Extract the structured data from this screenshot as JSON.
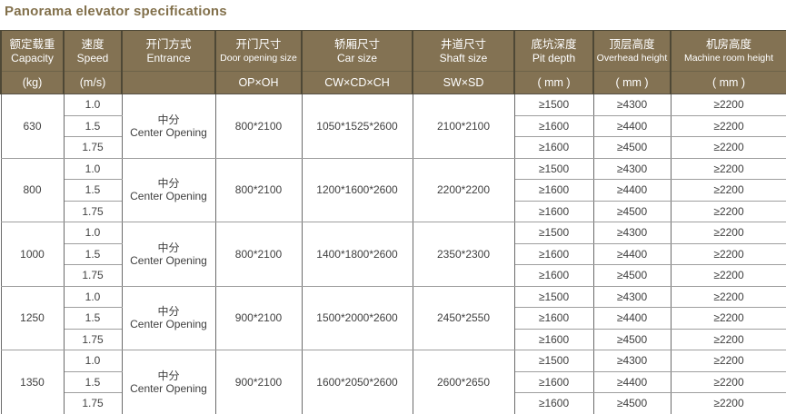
{
  "title": "Panorama elevator specifications",
  "colors": {
    "header_bg": "#837253",
    "header_text": "#ffffff",
    "header_divider": "#4e4836",
    "title_color": "#82704b",
    "body_text": "#3f3f3f",
    "grid_vertical": "#6b6b6b",
    "grid_horizontal": "#9e9e9e"
  },
  "header": {
    "columns": [
      {
        "zh": "额定载重",
        "en": "Capacity",
        "unit": "(kg)"
      },
      {
        "zh": "速度",
        "en": "Speed",
        "unit": "(m/s)"
      },
      {
        "zh": "开门方式",
        "en": "Entrance",
        "unit": ""
      },
      {
        "zh": "开门尺寸",
        "en": "Door opening size",
        "unit": "OP×OH"
      },
      {
        "zh": "轿厢尺寸",
        "en": "Car size",
        "unit": "CW×CD×CH"
      },
      {
        "zh": "井道尺寸",
        "en": "Shaft size",
        "unit": "SW×SD"
      },
      {
        "zh": "底坑深度",
        "en": "Pit depth",
        "unit": "( mm )"
      },
      {
        "zh": "顶层高度",
        "en": "Overhead height",
        "unit": "( mm )"
      },
      {
        "zh": "机房高度",
        "en": "Machine room height",
        "unit": "( mm )"
      }
    ]
  },
  "groups": [
    {
      "capacity": "630",
      "entrance_zh": "中分",
      "entrance_en": "Center Opening",
      "door": "800*2100",
      "car": "1050*1525*2600",
      "shaft": "2100*2100",
      "rows": [
        {
          "speed": "1.0",
          "pit": "≥1500",
          "overhead": "≥4300",
          "machine": "≥2200"
        },
        {
          "speed": "1.5",
          "pit": "≥1600",
          "overhead": "≥4400",
          "machine": "≥2200"
        },
        {
          "speed": "1.75",
          "pit": "≥1600",
          "overhead": "≥4500",
          "machine": "≥2200"
        }
      ]
    },
    {
      "capacity": "800",
      "entrance_zh": "中分",
      "entrance_en": "Center Opening",
      "door": "800*2100",
      "car": "1200*1600*2600",
      "shaft": "2200*2200",
      "rows": [
        {
          "speed": "1.0",
          "pit": "≥1500",
          "overhead": "≥4300",
          "machine": "≥2200"
        },
        {
          "speed": "1.5",
          "pit": "≥1600",
          "overhead": "≥4400",
          "machine": "≥2200"
        },
        {
          "speed": "1.75",
          "pit": "≥1600",
          "overhead": "≥4500",
          "machine": "≥2200"
        }
      ]
    },
    {
      "capacity": "1000",
      "entrance_zh": "中分",
      "entrance_en": "Center Opening",
      "door": "800*2100",
      "car": "1400*1800*2600",
      "shaft": "2350*2300",
      "rows": [
        {
          "speed": "1.0",
          "pit": "≥1500",
          "overhead": "≥4300",
          "machine": "≥2200"
        },
        {
          "speed": "1.5",
          "pit": "≥1600",
          "overhead": "≥4400",
          "machine": "≥2200"
        },
        {
          "speed": "1.75",
          "pit": "≥1600",
          "overhead": "≥4500",
          "machine": "≥2200"
        }
      ]
    },
    {
      "capacity": "1250",
      "entrance_zh": "中分",
      "entrance_en": "Center Opening",
      "door": "900*2100",
      "car": "1500*2000*2600",
      "shaft": "2450*2550",
      "rows": [
        {
          "speed": "1.0",
          "pit": "≥1500",
          "overhead": "≥4300",
          "machine": "≥2200"
        },
        {
          "speed": "1.5",
          "pit": "≥1600",
          "overhead": "≥4400",
          "machine": "≥2200"
        },
        {
          "speed": "1.75",
          "pit": "≥1600",
          "overhead": "≥4500",
          "machine": "≥2200"
        }
      ]
    },
    {
      "capacity": "1350",
      "entrance_zh": "中分",
      "entrance_en": "Center Opening",
      "door": "900*2100",
      "car": "1600*2050*2600",
      "shaft": "2600*2650",
      "rows": [
        {
          "speed": "1.0",
          "pit": "≥1500",
          "overhead": "≥4300",
          "machine": "≥2200"
        },
        {
          "speed": "1.5",
          "pit": "≥1600",
          "overhead": "≥4400",
          "machine": "≥2200"
        },
        {
          "speed": "1.75",
          "pit": "≥1600",
          "overhead": "≥4500",
          "machine": "≥2200"
        }
      ]
    }
  ]
}
